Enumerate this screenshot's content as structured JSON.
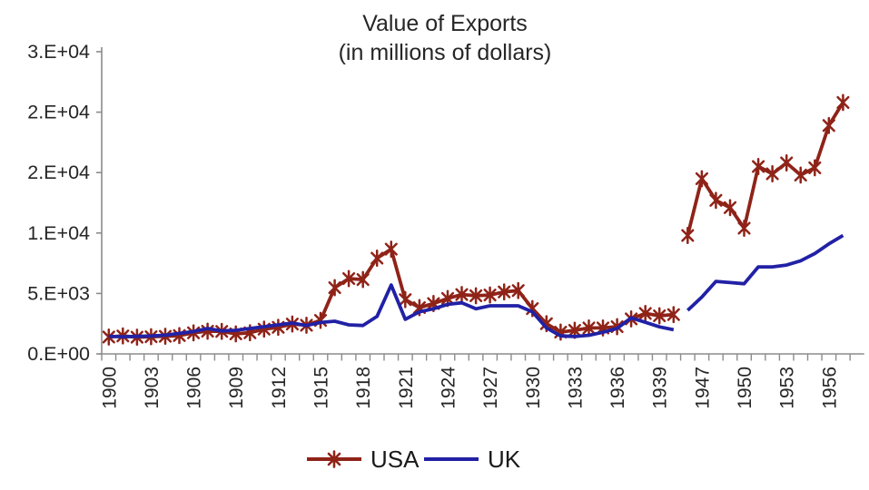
{
  "title": {
    "line1": "Value of Exports",
    "line2": "(in millions of dollars)"
  },
  "legend": {
    "items": [
      {
        "label": "USA",
        "color": "#8f2318",
        "marker": "asterisk"
      },
      {
        "label": "UK",
        "color": "#2121a6",
        "marker": "none"
      }
    ]
  },
  "chart_data": {
    "type": "line",
    "title": "Value of Exports (in millions of dollars)",
    "grid": false,
    "legend_position": "bottom",
    "ylim": [
      0,
      25000
    ],
    "y_ticks": [
      {
        "value": 0,
        "label": "0.E+00"
      },
      {
        "value": 5000,
        "label": "5.E+03"
      },
      {
        "value": 10000,
        "label": "1.E+04"
      },
      {
        "value": 15000,
        "label": "2.E+04"
      },
      {
        "value": 20000,
        "label": "2.E+04"
      },
      {
        "value": 25000,
        "label": "3.E+04"
      }
    ],
    "categories": [
      "1900",
      "1901",
      "1902",
      "1903",
      "1904",
      "1905",
      "1906",
      "1907",
      "1908",
      "1909",
      "1910",
      "1911",
      "1912",
      "1913",
      "1914",
      "1915",
      "1916",
      "1917",
      "1918",
      "1919",
      "1920",
      "1921",
      "1922",
      "1923",
      "1924",
      "1925",
      "1926",
      "1927",
      "1928",
      "1929",
      "1930",
      "1931",
      "1932",
      "1933",
      "1934",
      "1935",
      "1936",
      "1937",
      "1938",
      "1939",
      "1940",
      "1946",
      "1947",
      "1948",
      "1949",
      "1950",
      "1951",
      "1952",
      "1953",
      "1954",
      "1955",
      "1956",
      "1957"
    ],
    "x_tick_labels": [
      "1900",
      "1903",
      "1906",
      "1909",
      "1912",
      "1915",
      "1918",
      "1921",
      "1924",
      "1927",
      "1930",
      "1933",
      "1936",
      "1939",
      "1947",
      "1950",
      "1953",
      "1956"
    ],
    "gap_after_index": 40,
    "axis_color": "#8c8c8c",
    "text_color": "#262626",
    "series": [
      {
        "name": "USA",
        "color": "#8f2318",
        "marker": "asterisk",
        "values": [
          1400,
          1490,
          1380,
          1420,
          1460,
          1520,
          1740,
          1880,
          1860,
          1660,
          1750,
          2050,
          2200,
          2470,
          2370,
          2770,
          5480,
          6230,
          6150,
          7920,
          8660,
          4490,
          3830,
          4170,
          4590,
          4910,
          4810,
          4870,
          5130,
          5240,
          3750,
          2500,
          1800,
          1950,
          2150,
          2150,
          2250,
          2900,
          3350,
          3150,
          3250,
          9800,
          14500,
          12700,
          12100,
          10400,
          15500,
          14900,
          15800,
          14800,
          15400,
          18900,
          20800
        ]
      },
      {
        "name": "UK",
        "color": "#2121a6",
        "marker": "none",
        "values": [
          1450,
          1420,
          1450,
          1480,
          1550,
          1700,
          1850,
          2100,
          1900,
          1950,
          2100,
          2250,
          2400,
          2550,
          2350,
          2600,
          2700,
          2400,
          2350,
          3100,
          5700,
          2860,
          3480,
          3730,
          4100,
          4230,
          3730,
          3980,
          3980,
          3980,
          3480,
          2150,
          1490,
          1440,
          1540,
          1790,
          2110,
          2980,
          2610,
          2240,
          2000,
          3600,
          4700,
          6000,
          5900,
          5800,
          7200,
          7200,
          7350,
          7700,
          8300,
          9100,
          9800
        ]
      }
    ]
  }
}
